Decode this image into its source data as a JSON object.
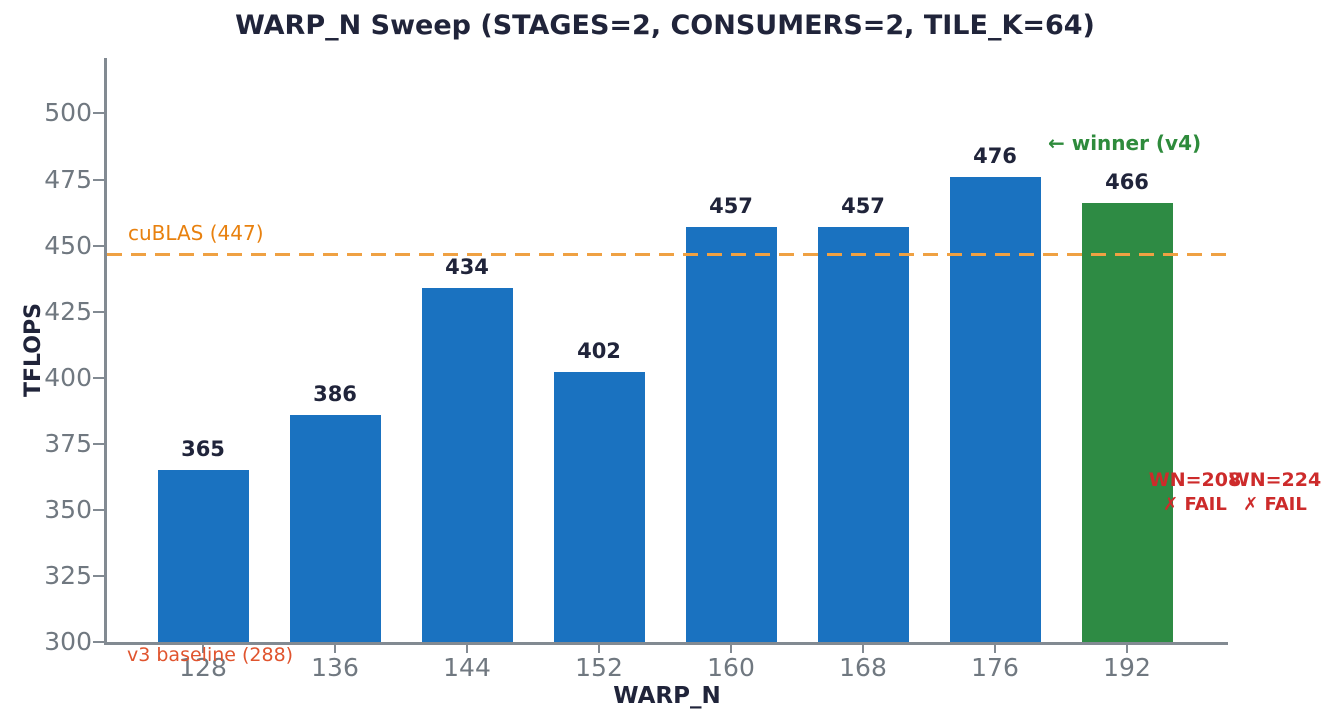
{
  "chart_data": {
    "type": "bar",
    "title": "WARP_N Sweep (STAGES=2, CONSUMERS=2, TILE_K=64)",
    "xlabel": "WARP_N",
    "ylabel": "TFLOPS",
    "categories": [
      "128",
      "136",
      "144",
      "152",
      "160",
      "168",
      "176",
      "192"
    ],
    "values": [
      365,
      386,
      434,
      402,
      457,
      457,
      476,
      466
    ],
    "bar_colors": [
      "#1a72c0",
      "#1a72c0",
      "#1a72c0",
      "#1a72c0",
      "#1a72c0",
      "#1a72c0",
      "#1a72c0",
      "#2e8b44"
    ],
    "winner_index": 7,
    "ylim": [
      300,
      521
    ],
    "yticks": [
      300,
      325,
      350,
      375,
      400,
      425,
      450,
      475,
      500
    ],
    "grid": false,
    "legend": "none",
    "reference_line": {
      "value": 447,
      "label": "cuBLAS (447)",
      "color": "#efa143",
      "style": "dashed"
    },
    "annotations": {
      "winner": "← winner (v4)",
      "winner_color": "#2e8b3c",
      "baseline_note": "v3 baseline (288)",
      "baseline_note_color": "#e0542e",
      "fail_color": "#cd2b2b",
      "fails": [
        {
          "label": "WN=208",
          "status": "✗ FAIL"
        },
        {
          "label": "WN=224",
          "status": "✗ FAIL"
        }
      ]
    },
    "colors": {
      "blue_bar": "#1a72c0",
      "green_bar": "#2e8b44",
      "title_text": "#20243a",
      "tick_text": "#707880",
      "axis_spine": "#828a92"
    }
  }
}
